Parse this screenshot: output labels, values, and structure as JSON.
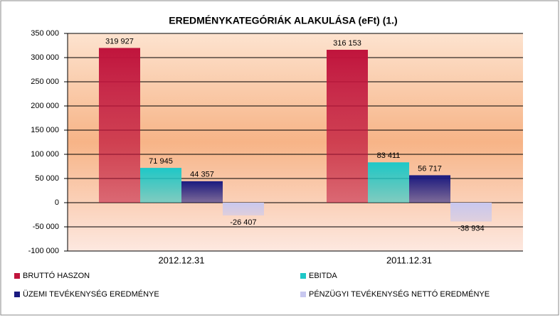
{
  "chart_data": {
    "type": "bar",
    "title": "EREDMÉNYKATEGÓRIÁK ALAKULÁSA (eFt) (1.)",
    "categories": [
      "2012.12.31",
      "2011.12.31"
    ],
    "series": [
      {
        "name": "BRUTTÓ HASZON",
        "color": "#c0143c",
        "values": [
          319927,
          316153
        ],
        "value_labels": [
          "319 927",
          "316 153"
        ]
      },
      {
        "name": "EBITDA",
        "color": "#1ec8c8",
        "values": [
          71945,
          83411
        ],
        "value_labels": [
          "71 945",
          "83 411"
        ]
      },
      {
        "name": "ÜZEMI TEVÉKENYSÉG EREDMÉNYE",
        "color": "#1a1a80",
        "values": [
          44357,
          56717
        ],
        "value_labels": [
          "44 357",
          "56 717"
        ]
      },
      {
        "name": "PÉNZÜGYI TEVÉKENYSÉG NETTÓ EREDMÉNYE",
        "color": "#c8c8f0",
        "values": [
          -26407,
          -38934
        ],
        "value_labels": [
          "-26 407",
          "-38 934"
        ]
      }
    ],
    "ylim": [
      -100000,
      350000
    ],
    "yticks": [
      {
        "value": -100000,
        "label": "-100 000"
      },
      {
        "value": -50000,
        "label": "-50 000"
      },
      0,
      {
        "value": 50000,
        "label": "50 000"
      },
      {
        "value": 100000,
        "label": "100 000"
      },
      {
        "value": 150000,
        "label": "150 000"
      },
      {
        "value": 200000,
        "label": "200 000"
      },
      {
        "value": 250000,
        "label": "250 000"
      },
      {
        "value": 300000,
        "label": "300 000"
      },
      {
        "value": 350000,
        "label": "350 000"
      }
    ],
    "grid": true
  }
}
